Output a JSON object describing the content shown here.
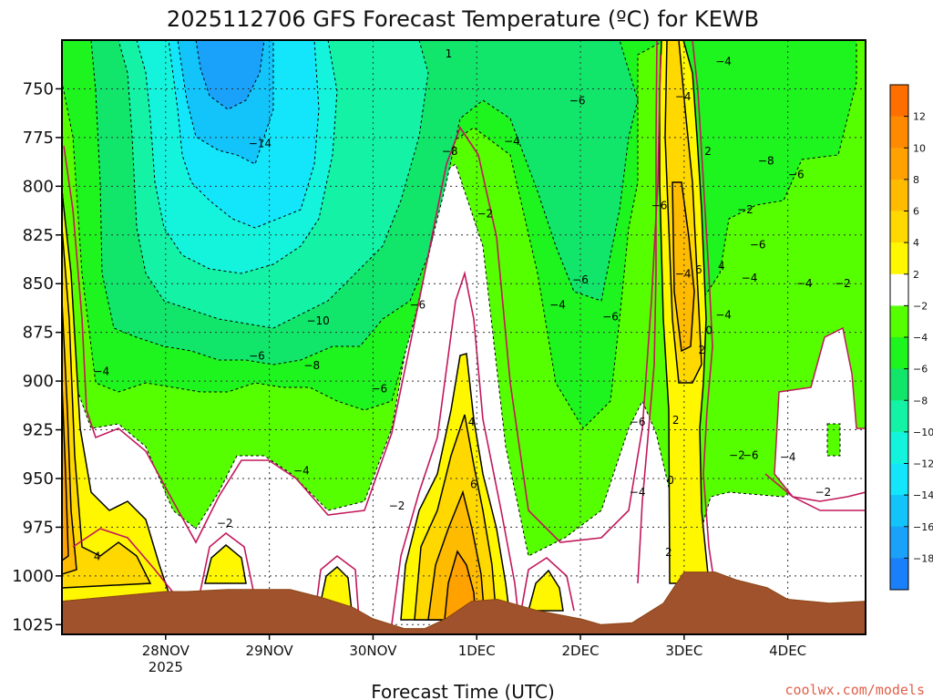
{
  "chart_data": {
    "type": "heatmap",
    "title": "2025112706 GFS Forecast Temperature (ºC) for KEWB",
    "xlabel": "Forecast Time (UTC)",
    "ylabel": "",
    "y_ticks": [
      750,
      775,
      800,
      825,
      850,
      875,
      900,
      925,
      950,
      975,
      1000,
      1025
    ],
    "ylim": [
      725,
      1030
    ],
    "y_inverted": true,
    "x_ticks": [
      {
        "label": "28NOV",
        "sublabel": "2025",
        "t": 1.0
      },
      {
        "label": "29NOV",
        "t": 2.0
      },
      {
        "label": "30NOV",
        "t": 3.0
      },
      {
        "label": "1DEC",
        "t": 4.0
      },
      {
        "label": "2DEC",
        "t": 5.0
      },
      {
        "label": "3DEC",
        "t": 6.0
      },
      {
        "label": "4DEC",
        "t": 7.0
      }
    ],
    "xlim": [
      0.0,
      7.75
    ],
    "colorbar": {
      "ticks": [
        "12",
        "10",
        "8",
        "6",
        "4",
        "2",
        "−2",
        "−4",
        "−6",
        "−8",
        "−10",
        "−12",
        "−14",
        "−16",
        "−18"
      ],
      "bands": [
        {
          "lo": 12,
          "hi": 14,
          "color": "#ff6f00"
        },
        {
          "lo": 10,
          "hi": 12,
          "color": "#ff8a00"
        },
        {
          "lo": 8,
          "hi": 10,
          "color": "#ffa200"
        },
        {
          "lo": 6,
          "hi": 8,
          "color": "#ffbb00"
        },
        {
          "lo": 4,
          "hi": 6,
          "color": "#ffd800"
        },
        {
          "lo": 2,
          "hi": 4,
          "color": "#fff700"
        },
        {
          "lo": -2,
          "hi": 2,
          "color": "#ffffff"
        },
        {
          "lo": -4,
          "hi": -2,
          "color": "#55ff00"
        },
        {
          "lo": -6,
          "hi": -4,
          "color": "#1ef41e"
        },
        {
          "lo": -8,
          "hi": -6,
          "color": "#12e66a"
        },
        {
          "lo": -10,
          "hi": -8,
          "color": "#14f2a6"
        },
        {
          "lo": -12,
          "hi": -10,
          "color": "#14f4dc"
        },
        {
          "lo": -14,
          "hi": -12,
          "color": "#13e6fa"
        },
        {
          "lo": -16,
          "hi": -14,
          "color": "#12c4fa"
        },
        {
          "lo": -18,
          "hi": -16,
          "color": "#1aa2fa"
        },
        {
          "lo": -20,
          "hi": -18,
          "color": "#1a80fa"
        }
      ]
    },
    "terrain_color": "#a0522d",
    "zero_contour_color": "#c2185b",
    "terrain_surface": [
      [
        0.0,
        1013
      ],
      [
        0.6,
        1010
      ],
      [
        1.0,
        1008
      ],
      [
        1.2,
        1008
      ],
      [
        1.6,
        1007
      ],
      [
        2.2,
        1007
      ],
      [
        2.5,
        1011
      ],
      [
        2.8,
        1016
      ],
      [
        3.0,
        1022
      ],
      [
        3.3,
        1027
      ],
      [
        3.5,
        1027
      ],
      [
        3.7,
        1022
      ],
      [
        3.95,
        1013
      ],
      [
        4.2,
        1012
      ],
      [
        4.6,
        1018
      ],
      [
        5.0,
        1022
      ],
      [
        5.2,
        1025
      ],
      [
        5.5,
        1024
      ],
      [
        5.8,
        1014
      ],
      [
        6.0,
        998
      ],
      [
        6.3,
        998
      ],
      [
        6.5,
        1002
      ],
      [
        6.8,
        1006
      ],
      [
        7.0,
        1012
      ],
      [
        7.4,
        1014
      ],
      [
        7.75,
        1013
      ]
    ],
    "contour_labels": [
      {
        "text": "1",
        "t": 3.73,
        "p": 732
      },
      {
        "text": "−4",
        "t": 6.38,
        "p": 736
      },
      {
        "text": "−4",
        "t": 5.99,
        "p": 754
      },
      {
        "text": "−6",
        "t": 4.97,
        "p": 756
      },
      {
        "text": "−4",
        "t": 4.34,
        "p": 777
      },
      {
        "text": "−14",
        "t": 1.91,
        "p": 778
      },
      {
        "text": "−8",
        "t": 3.74,
        "p": 782
      },
      {
        "text": "2",
        "t": 6.23,
        "p": 782
      },
      {
        "text": "−8",
        "t": 6.79,
        "p": 787
      },
      {
        "text": "−6",
        "t": 7.08,
        "p": 794
      },
      {
        "text": "−6",
        "t": 5.76,
        "p": 810
      },
      {
        "text": "−2",
        "t": 6.59,
        "p": 812
      },
      {
        "text": "−2",
        "t": 4.08,
        "p": 814
      },
      {
        "text": "−6",
        "t": 6.71,
        "p": 830
      },
      {
        "text": "−4",
        "t": 5.99,
        "p": 845
      },
      {
        "text": "6",
        "t": 6.14,
        "p": 843
      },
      {
        "text": "4",
        "t": 6.36,
        "p": 841
      },
      {
        "text": "−4",
        "t": 6.63,
        "p": 847
      },
      {
        "text": "−6",
        "t": 5.0,
        "p": 848
      },
      {
        "text": "−4",
        "t": 7.16,
        "p": 850
      },
      {
        "text": "−2",
        "t": 7.53,
        "p": 850
      },
      {
        "text": "−6",
        "t": 3.43,
        "p": 861
      },
      {
        "text": "−4",
        "t": 4.78,
        "p": 861
      },
      {
        "text": "−4",
        "t": 6.38,
        "p": 866
      },
      {
        "text": "−6",
        "t": 5.29,
        "p": 867
      },
      {
        "text": "−10",
        "t": 2.47,
        "p": 869
      },
      {
        "text": "0",
        "t": 6.24,
        "p": 874
      },
      {
        "text": "2",
        "t": 6.17,
        "p": 884
      },
      {
        "text": "−6",
        "t": 1.88,
        "p": 887
      },
      {
        "text": "−8",
        "t": 2.41,
        "p": 892
      },
      {
        "text": "−4",
        "t": 0.38,
        "p": 895
      },
      {
        "text": "−6",
        "t": 3.06,
        "p": 904
      },
      {
        "text": "2",
        "t": 5.92,
        "p": 920
      },
      {
        "text": "−6",
        "t": 5.55,
        "p": 921
      },
      {
        "text": "4",
        "t": 3.95,
        "p": 921
      },
      {
        "text": "−2",
        "t": 6.51,
        "p": 938
      },
      {
        "text": "−6",
        "t": 6.64,
        "p": 938
      },
      {
        "text": "−4",
        "t": 7.0,
        "p": 939
      },
      {
        "text": "−4",
        "t": 2.31,
        "p": 946
      },
      {
        "text": "0",
        "t": 5.87,
        "p": 951
      },
      {
        "text": "6",
        "t": 3.97,
        "p": 953
      },
      {
        "text": "−4",
        "t": 5.55,
        "p": 957
      },
      {
        "text": "−2",
        "t": 7.34,
        "p": 957
      },
      {
        "text": "−2",
        "t": 3.23,
        "p": 964
      },
      {
        "text": "−2",
        "t": 1.57,
        "p": 973
      },
      {
        "text": "2",
        "t": 5.85,
        "p": 988
      },
      {
        "text": "4",
        "t": 0.34,
        "p": 990
      }
    ]
  },
  "credit": "coolwx.com/models"
}
